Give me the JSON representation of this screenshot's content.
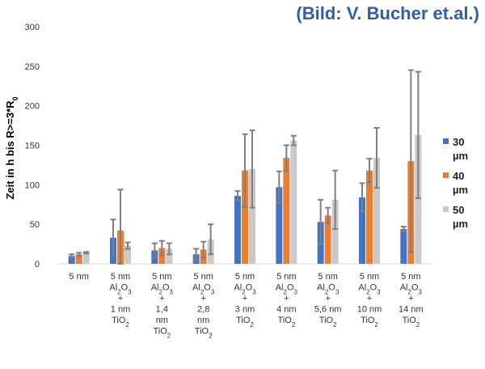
{
  "credit": "(Bild: V. Bucher et.al.)",
  "chart_data": {
    "type": "bar",
    "ylabel": "Zeit in h bis R>=3*R0",
    "ylabel_parts": {
      "main": "Zeit in h bis R>=3*R",
      "sub": "0"
    },
    "ylim": [
      0,
      300
    ],
    "yticks": [
      0,
      50,
      100,
      150,
      200,
      250,
      300
    ],
    "grid": false,
    "legend_position": "right",
    "categories": [
      "5 nm",
      "5 nm Al2O3 + 1 nm TiO2",
      "5 nm Al2O3 + 1,4 nm TiO2",
      "5 nm Al2O3 + 2,8 nm TiO2",
      "5 nm Al2O3 + 3 nm TiO2",
      "5 nm Al2O3 + 4 nm TiO2",
      "5 nm Al2O3 + 5,6 nm TiO2",
      "5 nm Al2O3 + 10 nm TiO2",
      "5 nm Al2O3 + 14 nm TiO2"
    ],
    "category_lines": [
      [
        [
          {
            "t": "5 nm"
          }
        ]
      ],
      [
        [
          {
            "t": "5 nm"
          }
        ],
        [
          {
            "t": "Al"
          },
          {
            "t": "2",
            "s": 1
          },
          {
            "t": "O"
          },
          {
            "t": "3",
            "s": 1
          }
        ],
        [
          {
            "t": "+"
          }
        ],
        [
          {
            "t": "1 nm"
          }
        ],
        [
          {
            "t": "TiO"
          },
          {
            "t": "2",
            "s": 1
          }
        ]
      ],
      [
        [
          {
            "t": "5 nm"
          }
        ],
        [
          {
            "t": "Al"
          },
          {
            "t": "2",
            "s": 1
          },
          {
            "t": "O"
          },
          {
            "t": "3",
            "s": 1
          }
        ],
        [
          {
            "t": "+"
          }
        ],
        [
          {
            "t": "1,4"
          }
        ],
        [
          {
            "t": "nm"
          }
        ],
        [
          {
            "t": "TiO"
          },
          {
            "t": "2",
            "s": 1
          }
        ]
      ],
      [
        [
          {
            "t": "5 nm"
          }
        ],
        [
          {
            "t": "Al"
          },
          {
            "t": "2",
            "s": 1
          },
          {
            "t": "O"
          },
          {
            "t": "3",
            "s": 1
          }
        ],
        [
          {
            "t": "+"
          }
        ],
        [
          {
            "t": "2,8"
          }
        ],
        [
          {
            "t": "nm"
          }
        ],
        [
          {
            "t": "TiO"
          },
          {
            "t": "2",
            "s": 1
          }
        ]
      ],
      [
        [
          {
            "t": "5 nm"
          }
        ],
        [
          {
            "t": "Al"
          },
          {
            "t": "2",
            "s": 1
          },
          {
            "t": "O"
          },
          {
            "t": "3",
            "s": 1
          }
        ],
        [
          {
            "t": "+"
          }
        ],
        [
          {
            "t": "3 nm"
          }
        ],
        [
          {
            "t": "TiO"
          },
          {
            "t": "2",
            "s": 1
          }
        ]
      ],
      [
        [
          {
            "t": "5 nm"
          }
        ],
        [
          {
            "t": "Al"
          },
          {
            "t": "2",
            "s": 1
          },
          {
            "t": "O"
          },
          {
            "t": "3",
            "s": 1
          }
        ],
        [
          {
            "t": "+"
          }
        ],
        [
          {
            "t": "4 nm"
          }
        ],
        [
          {
            "t": "TiO"
          },
          {
            "t": "2",
            "s": 1
          }
        ]
      ],
      [
        [
          {
            "t": "5 nm"
          }
        ],
        [
          {
            "t": "Al"
          },
          {
            "t": "2",
            "s": 1
          },
          {
            "t": "O"
          },
          {
            "t": "3",
            "s": 1
          }
        ],
        [
          {
            "t": "+"
          }
        ],
        [
          {
            "t": "5,6 nm"
          }
        ],
        [
          {
            "t": "TiO"
          },
          {
            "t": "2",
            "s": 1
          }
        ]
      ],
      [
        [
          {
            "t": "5 nm"
          }
        ],
        [
          {
            "t": "Al"
          },
          {
            "t": "2",
            "s": 1
          },
          {
            "t": "O"
          },
          {
            "t": "3",
            "s": 1
          }
        ],
        [
          {
            "t": "+"
          }
        ],
        [
          {
            "t": "10 nm"
          }
        ],
        [
          {
            "t": "TiO"
          },
          {
            "t": "2",
            "s": 1
          }
        ]
      ],
      [
        [
          {
            "t": "5 nm"
          }
        ],
        [
          {
            "t": "Al"
          },
          {
            "t": "2",
            "s": 1
          },
          {
            "t": "O"
          },
          {
            "t": "3",
            "s": 1
          }
        ],
        [
          {
            "t": "+"
          }
        ],
        [
          {
            "t": "14 nm"
          }
        ],
        [
          {
            "t": "TiO"
          },
          {
            "t": "2",
            "s": 1
          }
        ]
      ]
    ],
    "series": [
      {
        "name": "30 µm",
        "legend_lines": [
          "30",
          "µm"
        ],
        "color": "#4472c4",
        "values": [
          10,
          33,
          17,
          12,
          86,
          97,
          53,
          84,
          44
        ],
        "error": [
          2,
          23,
          9,
          7,
          6,
          20,
          28,
          18,
          3
        ]
      },
      {
        "name": "40 µm",
        "legend_lines": [
          "40",
          "µm"
        ],
        "color": "#ed7d31",
        "values": [
          12,
          42,
          20,
          18,
          118,
          134,
          61,
          118,
          130
        ],
        "error": [
          2,
          52,
          9,
          10,
          46,
          16,
          10,
          15,
          115
        ]
      },
      {
        "name": "50 µm",
        "legend_lines": [
          "50",
          "µm"
        ],
        "color": "#c9c9c9",
        "values": [
          14,
          23,
          19,
          31,
          120,
          156,
          81,
          134,
          163
        ],
        "error": [
          1,
          4,
          7,
          19,
          49,
          6,
          37,
          38,
          80
        ]
      }
    ]
  }
}
